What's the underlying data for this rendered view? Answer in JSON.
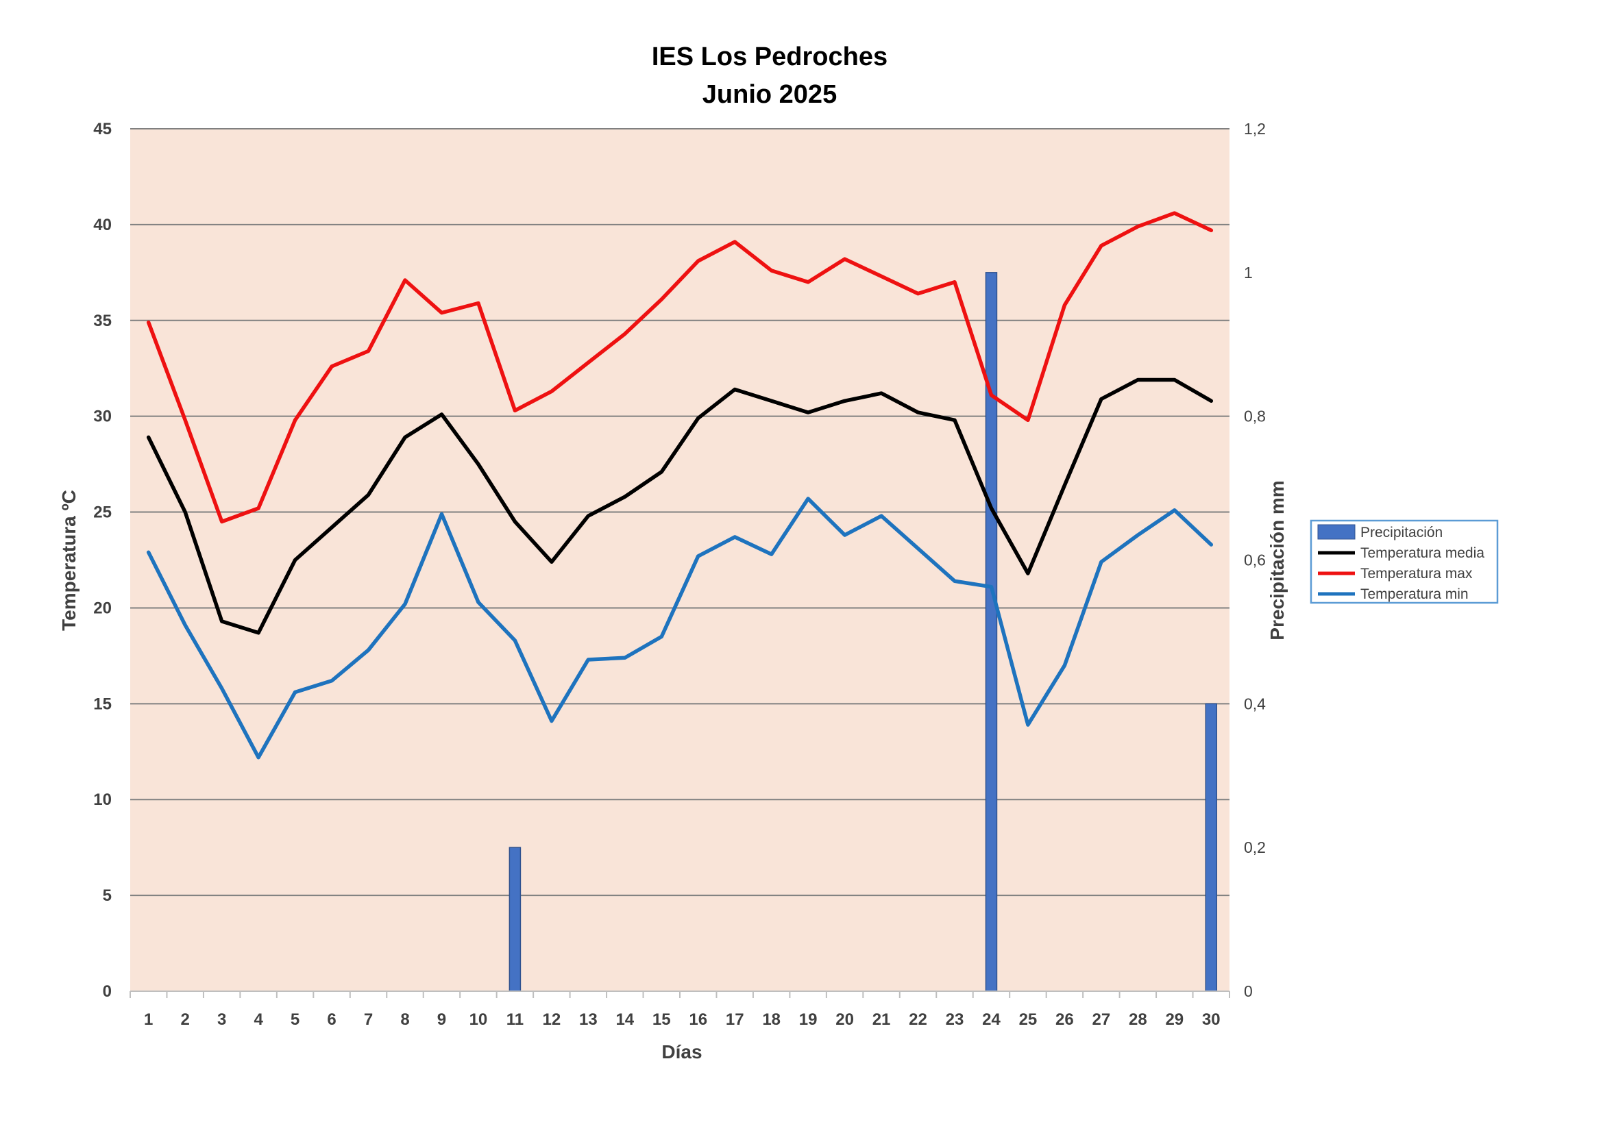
{
  "chart_data": {
    "type": "line",
    "title": [
      "IES Los Pedroches",
      "Junio 2025"
    ],
    "xlabel": "Días",
    "ylabel": "Temperatura ºC",
    "y2label": "Precipitación mm",
    "categories": [
      "1",
      "2",
      "3",
      "4",
      "5",
      "6",
      "7",
      "8",
      "9",
      "10",
      "11",
      "12",
      "13",
      "14",
      "15",
      "16",
      "17",
      "18",
      "19",
      "20",
      "21",
      "22",
      "23",
      "24",
      "25",
      "26",
      "27",
      "28",
      "29",
      "30"
    ],
    "ylim": [
      0,
      45
    ],
    "yticks": [
      "0",
      "5",
      "10",
      "15",
      "20",
      "25",
      "30",
      "35",
      "40",
      "45"
    ],
    "y2lim": [
      0,
      1.2
    ],
    "y2ticks": [
      "0",
      "0,2",
      "0,4",
      "0,6",
      "0,8",
      "1",
      "1,2"
    ],
    "grid": true,
    "background_color": "#F9E4D8",
    "legend_position": "right",
    "series": [
      {
        "name": "Precipitación",
        "type": "bar",
        "axis": "right",
        "color": "#4472C4",
        "values": [
          0,
          0,
          0,
          0,
          0,
          0,
          0,
          0,
          0,
          0,
          0.2,
          0,
          0,
          0,
          0,
          0,
          0,
          0,
          0,
          0,
          0,
          0,
          0,
          1.0,
          0,
          0,
          0,
          0,
          0,
          0.4
        ]
      },
      {
        "name": "Temperatura media",
        "type": "line",
        "axis": "left",
        "color": "#000000",
        "values": [
          28.9,
          25.0,
          19.3,
          18.7,
          22.5,
          24.2,
          25.9,
          28.9,
          30.1,
          27.5,
          24.5,
          22.4,
          24.8,
          25.8,
          27.1,
          29.9,
          31.4,
          30.8,
          30.2,
          30.8,
          31.2,
          30.2,
          29.8,
          25.2,
          21.8,
          26.4,
          30.9,
          31.9,
          31.9,
          30.8
        ]
      },
      {
        "name": "Temperatura max",
        "type": "line",
        "axis": "left",
        "color": "#EE1111",
        "values": [
          34.9,
          29.8,
          24.5,
          25.2,
          29.8,
          32.6,
          33.4,
          37.1,
          35.4,
          35.9,
          30.3,
          31.3,
          32.8,
          34.3,
          36.1,
          38.1,
          39.1,
          37.6,
          37.0,
          38.2,
          37.3,
          36.4,
          37.0,
          31.1,
          29.8,
          35.8,
          38.9,
          39.9,
          40.6,
          39.7
        ]
      },
      {
        "name": "Temperatura min",
        "type": "line",
        "axis": "left",
        "color": "#1E73BE",
        "values": [
          22.9,
          19.1,
          15.8,
          12.2,
          15.6,
          16.2,
          17.8,
          20.2,
          24.9,
          20.3,
          18.3,
          14.1,
          17.3,
          17.4,
          18.5,
          22.7,
          23.7,
          22.8,
          25.7,
          23.8,
          24.8,
          23.1,
          21.4,
          21.1,
          13.9,
          17.0,
          22.4,
          23.8,
          25.1,
          23.3
        ]
      }
    ]
  }
}
